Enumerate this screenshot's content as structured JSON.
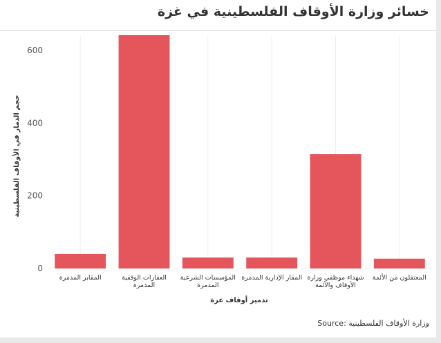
{
  "title": "خسائر وزارة الأوقاف الفلسطينية في غزة",
  "source": "Source: وزارة الأوقاف الفلسطينية",
  "colors": {
    "bar": "#e5565c",
    "grid": "#eeeeee",
    "axis_text": "#555555",
    "label_text": "#333333"
  },
  "chart_data": {
    "type": "bar",
    "title": "خسائر وزارة الأوقاف الفلسطينية في غزة",
    "xlabel": "تدمير أوقاف غزة",
    "ylabel": "حجم الدمار في الأوقاف الفلسطينية",
    "ylim": [
      0,
      640
    ],
    "yticks": [
      0,
      200,
      400,
      600
    ],
    "categories": [
      [
        "المقابر المدمرة"
      ],
      [
        "العقارات الوقفية",
        "المدمرة"
      ],
      [
        "المؤسسات الشرعية",
        "المدمرة"
      ],
      [
        "المقار الإدارية المدمرة"
      ],
      [
        "شهداء موظفي وزارة",
        "الأوقاف والأئمة"
      ],
      [
        "المعتقلون من الأئمة"
      ]
    ],
    "values": [
      40,
      642,
      30,
      30,
      315,
      27
    ],
    "grid": true,
    "legend": "none"
  }
}
